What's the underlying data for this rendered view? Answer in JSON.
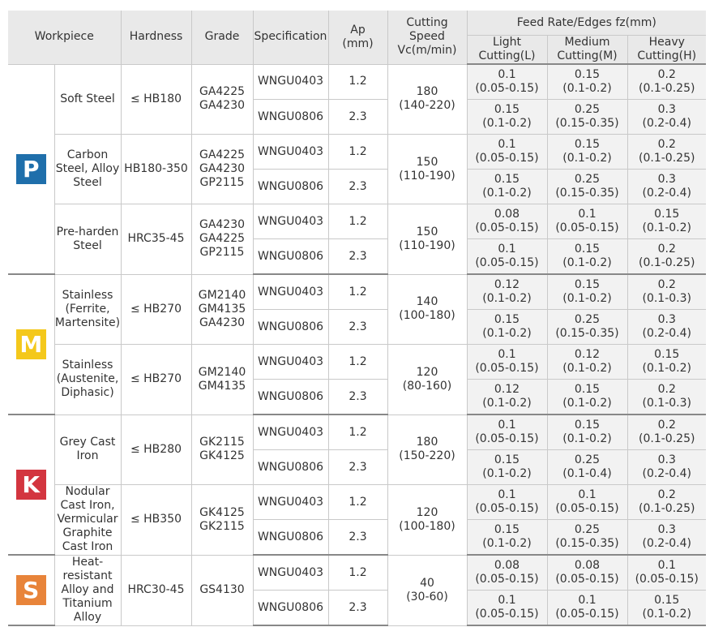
{
  "header": {
    "workpiece": "Workpiece",
    "hardness": "Hardness",
    "grade": "Grade",
    "specification": "Specification",
    "ap": "Ap\n(mm)",
    "speed": "Cutting\nSpeed\nVc(m/min)",
    "feed": "Feed Rate/Edges fz(mm)",
    "light": "Light\nCutting(L)",
    "medium": "Medium\nCutting(M)",
    "heavy": "Heavy\nCutting(H)"
  },
  "groups": [
    {
      "letter": "P",
      "color": "#1f6fab",
      "workpieces": [
        {
          "name": "Soft Steel",
          "hardness": "≤ HB180",
          "grade": "GA4225\nGA4230",
          "speed": "180\n(140-220)",
          "rows": [
            {
              "spec": "WNGU0403",
              "ap": "1.2",
              "L": "0.1\n(0.05-0.15)",
              "M": "0.15\n(0.1-0.2)",
              "H": "0.2\n(0.1-0.25)"
            },
            {
              "spec": "WNGU0806",
              "ap": "2.3",
              "L": "0.15\n(0.1-0.2)",
              "M": "0.25\n(0.15-0.35)",
              "H": "0.3\n(0.2-0.4)"
            }
          ]
        },
        {
          "name": "Carbon\nSteel, Alloy\nSteel",
          "hardness": "HB180-350",
          "grade": "GA4225\nGA4230\nGP2115",
          "speed": "150\n(110-190)",
          "rows": [
            {
              "spec": "WNGU0403",
              "ap": "1.2",
              "L": "0.1\n(0.05-0.15)",
              "M": "0.15\n(0.1-0.2)",
              "H": "0.2\n(0.1-0.25)"
            },
            {
              "spec": "WNGU0806",
              "ap": "2.3",
              "L": "0.15\n(0.1-0.2)",
              "M": "0.25\n(0.15-0.35)",
              "H": "0.3\n(0.2-0.4)"
            }
          ]
        },
        {
          "name": "Pre-harden\nSteel",
          "hardness": "HRC35-45",
          "grade": "GA4230\nGA4225\nGP2115",
          "speed": "150\n(110-190)",
          "rows": [
            {
              "spec": "WNGU0403",
              "ap": "1.2",
              "L": "0.08\n(0.05-0.15)",
              "M": "0.1\n(0.05-0.15)",
              "H": "0.15\n(0.1-0.2)"
            },
            {
              "spec": "WNGU0806",
              "ap": "2.3",
              "L": "0.1\n(0.05-0.15)",
              "M": "0.15\n(0.1-0.2)",
              "H": "0.2\n(0.1-0.25)"
            }
          ]
        }
      ]
    },
    {
      "letter": "M",
      "color": "#f4c81b",
      "workpieces": [
        {
          "name": "Stainless\n(Ferrite,\nMartensite)",
          "hardness": "≤ HB270",
          "grade": "GM2140\nGM4135\nGA4230",
          "speed": "140\n(100-180)",
          "rows": [
            {
              "spec": "WNGU0403",
              "ap": "1.2",
              "L": "0.12\n(0.1-0.2)",
              "M": "0.15\n(0.1-0.2)",
              "H": "0.2\n(0.1-0.3)"
            },
            {
              "spec": "WNGU0806",
              "ap": "2.3",
              "L": "0.15\n(0.1-0.2)",
              "M": "0.25\n(0.15-0.35)",
              "H": "0.3\n(0.2-0.4)"
            }
          ]
        },
        {
          "name": "Stainless\n(Austenite,\nDiphasic)",
          "hardness": "≤ HB270",
          "grade": "GM2140\nGM4135",
          "speed": "120\n(80-160)",
          "rows": [
            {
              "spec": "WNGU0403",
              "ap": "1.2",
              "L": "0.1\n(0.05-0.15)",
              "M": "0.12\n(0.1-0.2)",
              "H": "0.15\n(0.1-0.2)"
            },
            {
              "spec": "WNGU0806",
              "ap": "2.3",
              "L": "0.12\n(0.1-0.2)",
              "M": "0.15\n(0.1-0.2)",
              "H": "0.2\n(0.1-0.3)"
            }
          ]
        }
      ]
    },
    {
      "letter": "K",
      "color": "#d3353f",
      "workpieces": [
        {
          "name": "Grey Cast\nIron",
          "hardness": "≤ HB280",
          "grade": "GK2115\nGK4125",
          "speed": "180\n(150-220)",
          "rows": [
            {
              "spec": "WNGU0403",
              "ap": "1.2",
              "L": "0.1\n(0.05-0.15)",
              "M": "0.15\n(0.1-0.2)",
              "H": "0.2\n(0.1-0.25)"
            },
            {
              "spec": "WNGU0806",
              "ap": "2.3",
              "L": "0.15\n(0.1-0.2)",
              "M": "0.25\n(0.1-0.4)",
              "H": "0.3\n(0.2-0.4)"
            }
          ]
        },
        {
          "name": "Nodular\nCast Iron,\nVermicular\nGraphite\nCast Iron",
          "hardness": "≤ HB350",
          "grade": "GK4125\nGK2115",
          "speed": "120\n(100-180)",
          "rows": [
            {
              "spec": "WNGU0403",
              "ap": "1.2",
              "L": "0.1\n(0.05-0.15)",
              "M": "0.1\n(0.05-0.15)",
              "H": "0.2\n(0.1-0.25)"
            },
            {
              "spec": "WNGU0806",
              "ap": "2.3",
              "L": "0.15\n(0.1-0.2)",
              "M": "0.25\n(0.15-0.35)",
              "H": "0.3\n(0.2-0.4)"
            }
          ]
        }
      ]
    },
    {
      "letter": "S",
      "color": "#e8843a",
      "workpieces": [
        {
          "name": "Heat-\nresistant\nAlloy and\nTitanium\nAlloy",
          "hardness": "HRC30-45",
          "grade": "GS4130",
          "speed": "40\n(30-60)",
          "rows": [
            {
              "spec": "WNGU0403",
              "ap": "1.2",
              "L": "0.08\n(0.05-0.15)",
              "M": "0.08\n(0.05-0.15)",
              "H": "0.1\n(0.05-0.15)"
            },
            {
              "spec": "WNGU0806",
              "ap": "2.3",
              "L": "0.1\n(0.05-0.15)",
              "M": "0.1\n(0.05-0.15)",
              "H": "0.15\n(0.1-0.2)"
            }
          ]
        }
      ]
    }
  ]
}
